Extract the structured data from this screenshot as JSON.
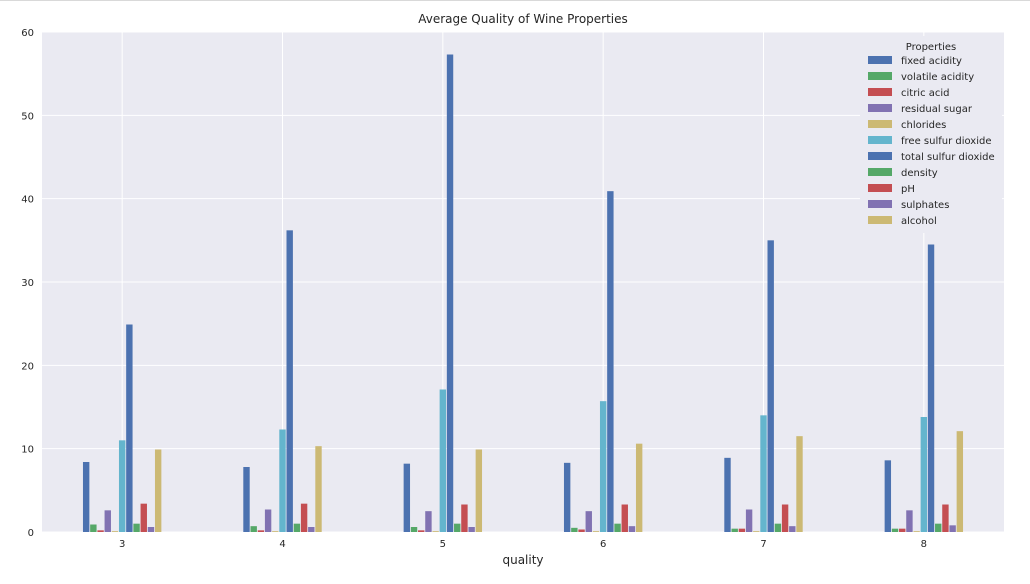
{
  "chart_data": {
    "type": "bar",
    "title": "Average Quality of Wine Properties",
    "xlabel": "quality",
    "ylabel": "",
    "categories": [
      "3",
      "4",
      "5",
      "6",
      "7",
      "8"
    ],
    "ylim": [
      0,
      60
    ],
    "yticks": [
      0,
      10,
      20,
      30,
      40,
      50,
      60
    ],
    "grid": true,
    "legend": {
      "title": "Properties",
      "placement": "top-right"
    },
    "series": [
      {
        "name": "fixed acidity",
        "color": "#4c72b0",
        "values": [
          8.4,
          7.8,
          8.2,
          8.3,
          8.9,
          8.6
        ]
      },
      {
        "name": "volatile acidity",
        "color": "#55a868",
        "values": [
          0.9,
          0.7,
          0.6,
          0.5,
          0.4,
          0.4
        ]
      },
      {
        "name": "citric acid",
        "color": "#c44e52",
        "values": [
          0.2,
          0.2,
          0.2,
          0.3,
          0.4,
          0.4
        ]
      },
      {
        "name": "residual sugar",
        "color": "#8172b2",
        "values": [
          2.6,
          2.7,
          2.5,
          2.5,
          2.7,
          2.6
        ]
      },
      {
        "name": "chlorides",
        "color": "#ccb974",
        "values": [
          0.1,
          0.1,
          0.1,
          0.1,
          0.1,
          0.1
        ]
      },
      {
        "name": "free sulfur dioxide",
        "color": "#64b5cd",
        "values": [
          11.0,
          12.3,
          17.1,
          15.7,
          14.0,
          13.8
        ]
      },
      {
        "name": "total sulfur dioxide",
        "color": "#4c72b0",
        "values": [
          24.9,
          36.2,
          57.3,
          40.9,
          35.0,
          34.5
        ]
      },
      {
        "name": "density",
        "color": "#55a868",
        "values": [
          1.0,
          1.0,
          1.0,
          1.0,
          1.0,
          1.0
        ]
      },
      {
        "name": "pH",
        "color": "#c44e52",
        "values": [
          3.4,
          3.4,
          3.3,
          3.3,
          3.3,
          3.3
        ]
      },
      {
        "name": "sulphates",
        "color": "#8172b2",
        "values": [
          0.6,
          0.6,
          0.6,
          0.7,
          0.7,
          0.8
        ]
      },
      {
        "name": "alcohol",
        "color": "#ccb974",
        "values": [
          9.9,
          10.3,
          9.9,
          10.6,
          11.5,
          12.1
        ]
      }
    ]
  }
}
